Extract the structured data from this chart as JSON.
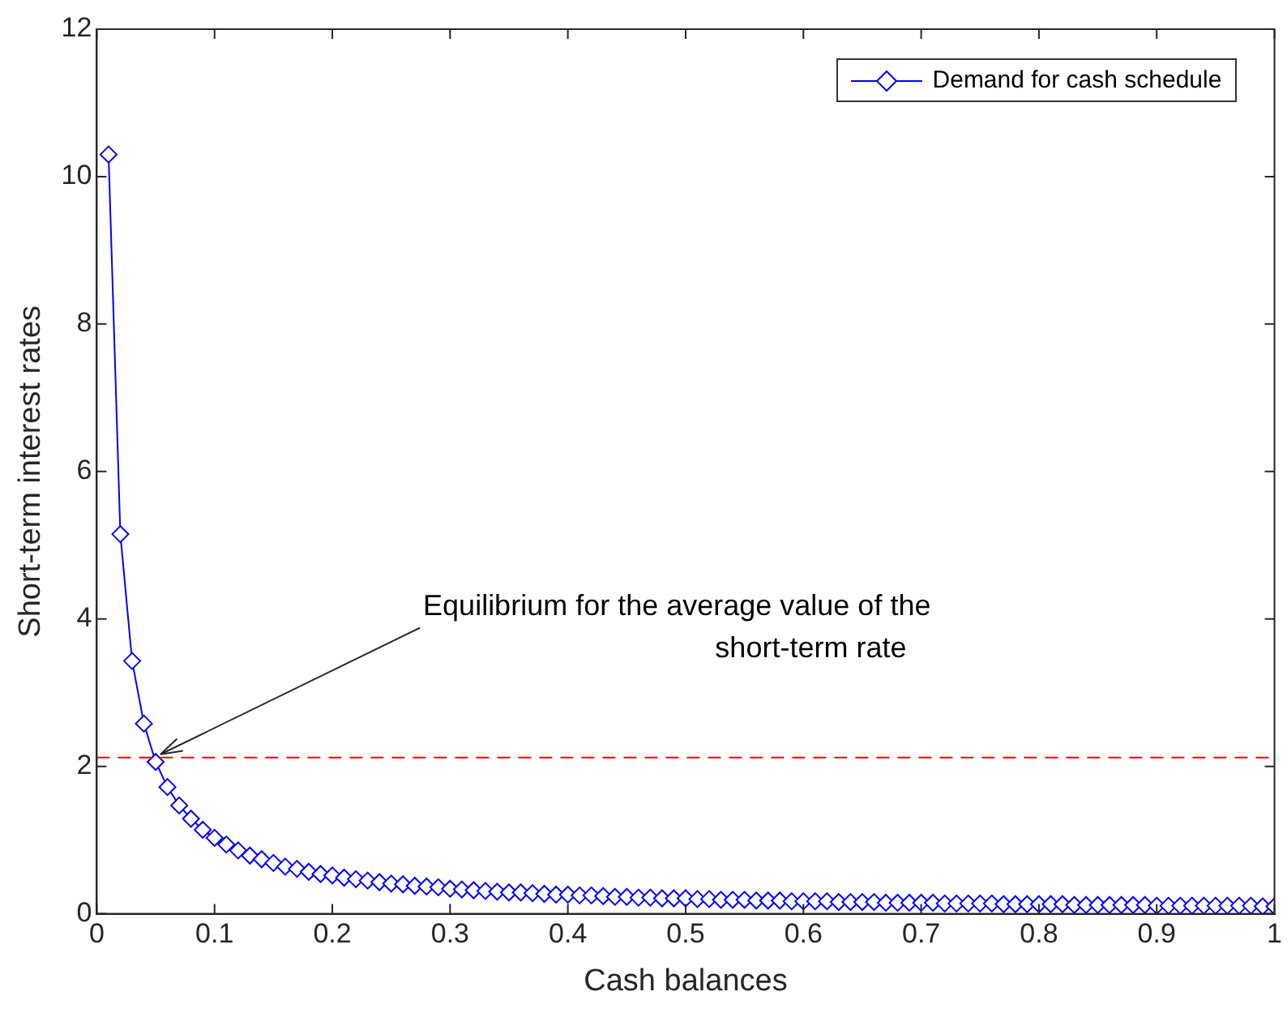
{
  "chart_data": {
    "type": "line",
    "xlabel": "Cash balances",
    "ylabel": "Short-term interest rates",
    "xlim": [
      0,
      1
    ],
    "xticks": [
      0,
      0.1,
      0.2,
      0.3,
      0.4,
      0.5,
      0.6,
      0.7,
      0.8,
      0.9,
      1
    ],
    "ylim": [
      0,
      12
    ],
    "yticks": [
      0,
      2,
      4,
      6,
      8,
      10,
      12
    ],
    "grid": false,
    "legend": "top right",
    "marker": "diamond",
    "line_style": "solid",
    "series": [
      {
        "name": "Demand for cash schedule",
        "color": "#0000ff",
        "x": [
          0.01,
          0.02,
          0.03,
          0.04,
          0.05,
          0.06,
          0.07,
          0.08,
          0.09,
          0.1,
          0.11,
          0.12,
          0.13,
          0.14,
          0.15,
          0.16,
          0.17,
          0.18,
          0.19,
          0.2,
          0.21,
          0.22,
          0.23,
          0.24,
          0.25,
          0.26,
          0.27,
          0.28,
          0.29,
          0.3,
          0.31,
          0.32,
          0.33,
          0.34,
          0.35,
          0.36,
          0.37,
          0.38,
          0.39,
          0.4,
          0.41,
          0.42,
          0.43,
          0.44,
          0.45,
          0.46,
          0.47,
          0.48,
          0.49,
          0.5,
          0.51,
          0.52,
          0.53,
          0.54,
          0.55,
          0.56,
          0.57,
          0.58,
          0.59,
          0.6,
          0.61,
          0.62,
          0.63,
          0.64,
          0.65,
          0.66,
          0.67,
          0.68,
          0.69,
          0.7,
          0.71,
          0.72,
          0.73,
          0.74,
          0.75,
          0.76,
          0.77,
          0.78,
          0.79,
          0.8,
          0.81,
          0.82,
          0.83,
          0.84,
          0.85,
          0.86,
          0.87,
          0.88,
          0.89,
          0.9,
          0.91,
          0.92,
          0.93,
          0.94,
          0.95,
          0.96,
          0.97,
          0.98,
          0.99,
          1
        ],
        "values": [
          10.3,
          5.15,
          3.43,
          2.58,
          2.06,
          1.72,
          1.47,
          1.29,
          1.14,
          1.03,
          0.94,
          0.86,
          0.79,
          0.74,
          0.69,
          0.64,
          0.61,
          0.57,
          0.54,
          0.52,
          0.49,
          0.47,
          0.45,
          0.43,
          0.41,
          0.4,
          0.38,
          0.37,
          0.36,
          0.34,
          0.33,
          0.32,
          0.31,
          0.3,
          0.29,
          0.29,
          0.28,
          0.27,
          0.26,
          0.26,
          0.25,
          0.25,
          0.24,
          0.23,
          0.23,
          0.22,
          0.22,
          0.21,
          0.21,
          0.21,
          0.2,
          0.2,
          0.19,
          0.19,
          0.19,
          0.18,
          0.18,
          0.18,
          0.17,
          0.17,
          0.17,
          0.17,
          0.16,
          0.16,
          0.16,
          0.16,
          0.15,
          0.15,
          0.15,
          0.15,
          0.15,
          0.14,
          0.14,
          0.14,
          0.14,
          0.14,
          0.13,
          0.13,
          0.13,
          0.13,
          0.13,
          0.13,
          0.12,
          0.12,
          0.12,
          0.12,
          0.12,
          0.12,
          0.12,
          0.11,
          0.11,
          0.11,
          0.11,
          0.11,
          0.11,
          0.11,
          0.11,
          0.11,
          0.1,
          0.1
        ]
      }
    ],
    "ref_lines": [
      {
        "axis": "y",
        "value": 2.12,
        "color": "#ff0000",
        "line_style": "dashed"
      }
    ],
    "annotations": [
      {
        "text": "Equilibrium for the average value of the short-term rate",
        "x": 0.05,
        "y": 2.12
      }
    ]
  }
}
